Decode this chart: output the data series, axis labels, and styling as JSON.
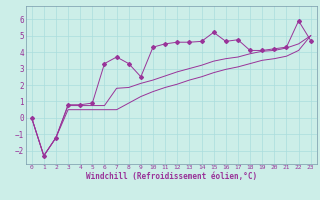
{
  "xlabel": "Windchill (Refroidissement éolien,°C)",
  "background_color": "#cceee8",
  "grid_color": "#aadddd",
  "line_color": "#993399",
  "spine_color": "#7799aa",
  "xlim": [
    -0.5,
    23.5
  ],
  "ylim": [
    -2.8,
    6.8
  ],
  "xticks": [
    0,
    1,
    2,
    3,
    4,
    5,
    6,
    7,
    8,
    9,
    10,
    11,
    12,
    13,
    14,
    15,
    16,
    17,
    18,
    19,
    20,
    21,
    22,
    23
  ],
  "yticks": [
    -2,
    -1,
    0,
    1,
    2,
    3,
    4,
    5,
    6
  ],
  "series1_x": [
    0,
    1,
    2,
    3,
    4,
    5,
    6,
    7,
    8,
    9,
    10,
    11,
    12,
    13,
    14,
    15,
    16,
    17,
    18,
    19,
    20,
    21,
    22,
    23
  ],
  "series1_y": [
    0,
    -2.3,
    -1.2,
    0.8,
    0.8,
    0.9,
    3.3,
    3.7,
    3.3,
    2.5,
    4.3,
    4.5,
    4.6,
    4.6,
    4.65,
    5.2,
    4.65,
    4.75,
    4.1,
    4.1,
    4.2,
    4.3,
    5.9,
    4.7
  ],
  "series2_x": [
    0,
    1,
    2,
    3,
    4,
    5,
    6,
    7,
    8,
    9,
    10,
    11,
    12,
    13,
    14,
    15,
    16,
    17,
    18,
    19,
    20,
    21,
    22,
    23
  ],
  "series2_y": [
    0,
    -2.3,
    -1.2,
    0.75,
    0.75,
    0.75,
    0.75,
    1.8,
    1.85,
    2.1,
    2.3,
    2.55,
    2.8,
    3.0,
    3.2,
    3.45,
    3.6,
    3.7,
    3.9,
    4.05,
    4.1,
    4.25,
    4.5,
    5.0
  ],
  "series3_x": [
    0,
    1,
    2,
    3,
    4,
    5,
    6,
    7,
    8,
    9,
    10,
    11,
    12,
    13,
    14,
    15,
    16,
    17,
    18,
    19,
    20,
    21,
    22,
    23
  ],
  "series3_y": [
    0,
    -2.3,
    -1.2,
    0.5,
    0.5,
    0.5,
    0.5,
    0.5,
    0.9,
    1.3,
    1.6,
    1.85,
    2.05,
    2.3,
    2.5,
    2.75,
    2.95,
    3.1,
    3.3,
    3.5,
    3.6,
    3.75,
    4.1,
    5.0
  ]
}
